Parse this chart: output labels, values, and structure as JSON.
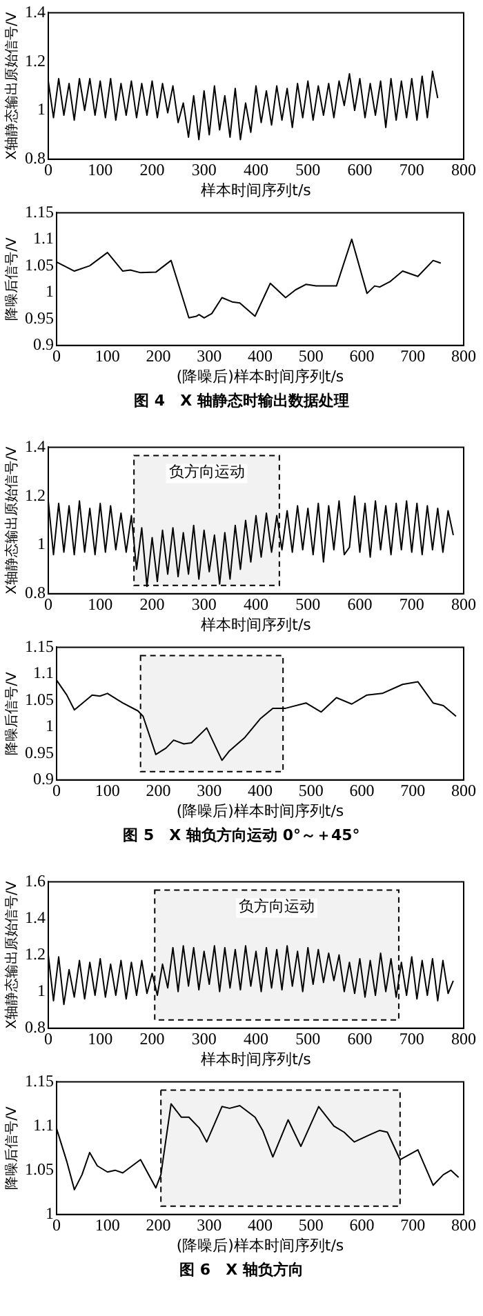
{
  "chart_data": [
    {
      "type": "line",
      "ylabel": "X轴静态输出原始信号/V",
      "xlabel": "样本时间序列t/s",
      "xlim": [
        0,
        800
      ],
      "xticks": [
        0,
        100,
        200,
        300,
        400,
        500,
        600,
        700,
        800
      ],
      "ylim": [
        0.8,
        1.4
      ],
      "yticks": [
        0.8,
        1,
        1.2,
        1.4
      ],
      "grid": false,
      "legend": false,
      "series": [
        {
          "color": "#000000",
          "x": [
            0,
            10,
            20,
            30,
            40,
            50,
            60,
            70,
            80,
            90,
            100,
            110,
            120,
            130,
            140,
            150,
            160,
            170,
            180,
            190,
            200,
            210,
            220,
            230,
            240,
            250,
            260,
            270,
            280,
            290,
            300,
            310,
            320,
            330,
            340,
            350,
            360,
            370,
            380,
            390,
            400,
            410,
            420,
            430,
            440,
            450,
            460,
            470,
            480,
            490,
            500,
            510,
            520,
            530,
            540,
            550,
            560,
            570,
            580,
            590,
            600,
            610,
            620,
            630,
            640,
            650,
            660,
            670,
            680,
            690,
            700,
            710,
            720,
            730,
            740,
            750
          ],
          "values": [
            1.12,
            0.97,
            1.13,
            0.98,
            1.11,
            0.96,
            1.13,
            1.0,
            1.13,
            0.98,
            1.12,
            0.97,
            1.13,
            0.96,
            1.11,
            0.98,
            1.12,
            0.97,
            1.11,
            0.98,
            1.12,
            0.97,
            1.11,
            0.99,
            1.1,
            0.95,
            1.03,
            0.89,
            1.06,
            0.88,
            1.08,
            0.9,
            1.1,
            0.92,
            1.06,
            0.89,
            1.09,
            0.88,
            1.03,
            0.91,
            1.1,
            0.95,
            1.08,
            0.94,
            1.1,
            0.96,
            1.09,
            0.93,
            1.11,
            0.97,
            1.12,
            0.96,
            1.1,
            0.98,
            1.11,
            0.97,
            1.12,
            1.02,
            1.15,
            1.0,
            1.13,
            0.97,
            1.11,
            0.98,
            1.12,
            0.93,
            1.13,
            0.96,
            1.12,
            0.97,
            1.13,
            0.96,
            1.14,
            0.97,
            1.16,
            1.05
          ]
        }
      ]
    },
    {
      "type": "line",
      "ylabel": "降噪后信号/V",
      "xlabel": "(降噪后)样本时间序列t/s",
      "xlim": [
        0,
        800
      ],
      "xticks": [
        0,
        100,
        200,
        300,
        400,
        500,
        600,
        700,
        800
      ],
      "ylim": [
        0.9,
        1.15
      ],
      "yticks": [
        0.9,
        0.95,
        1,
        1.05,
        1.1,
        1.15
      ],
      "grid": false,
      "legend": false,
      "series": [
        {
          "color": "#000000",
          "x": [
            0,
            35,
            65,
            100,
            130,
            145,
            165,
            195,
            225,
            260,
            275,
            280,
            290,
            305,
            325,
            345,
            360,
            390,
            420,
            450,
            470,
            490,
            510,
            550,
            580,
            610,
            625,
            635,
            655,
            680,
            710,
            740,
            755
          ],
          "values": [
            1.057,
            1.04,
            1.05,
            1.075,
            1.04,
            1.042,
            1.037,
            1.038,
            1.06,
            0.952,
            0.955,
            0.958,
            0.952,
            0.96,
            0.99,
            0.982,
            0.98,
            0.955,
            1.017,
            0.99,
            1.005,
            1.015,
            1.012,
            1.012,
            1.1,
            0.998,
            1.012,
            1.01,
            1.02,
            1.04,
            1.03,
            1.06,
            1.055
          ]
        }
      ],
      "annotations": [
        "图 4　X 轴静态时输出数据处理"
      ]
    },
    {
      "type": "line",
      "ylabel": "X轴静态输出原始信号/V",
      "xlabel": "样本时间序列t/s",
      "xlim": [
        0,
        800
      ],
      "xticks": [
        0,
        100,
        200,
        300,
        400,
        500,
        600,
        700,
        800
      ],
      "ylim": [
        0.8,
        1.4
      ],
      "yticks": [
        0.8,
        1,
        1.2,
        1.4
      ],
      "grid": false,
      "legend": false,
      "bands": [
        {
          "axis": "x",
          "from": 165,
          "to": 445,
          "label": "负方向运动",
          "color": "#f2f2f2"
        }
      ],
      "series": [
        {
          "color": "#000000",
          "x": [
            0,
            10,
            20,
            30,
            40,
            50,
            60,
            70,
            80,
            90,
            100,
            110,
            120,
            130,
            140,
            150,
            160,
            170,
            180,
            190,
            200,
            210,
            220,
            230,
            240,
            250,
            260,
            270,
            280,
            290,
            300,
            310,
            320,
            330,
            340,
            350,
            360,
            370,
            380,
            390,
            400,
            410,
            420,
            430,
            440,
            450,
            460,
            470,
            480,
            490,
            500,
            510,
            520,
            530,
            540,
            550,
            560,
            570,
            580,
            590,
            600,
            610,
            620,
            630,
            640,
            650,
            660,
            670,
            680,
            690,
            700,
            710,
            720,
            730,
            740,
            750,
            760,
            770,
            780
          ],
          "values": [
            1.18,
            0.96,
            1.17,
            0.97,
            1.16,
            0.96,
            1.18,
            0.97,
            1.15,
            0.96,
            1.17,
            0.97,
            1.16,
            0.98,
            1.13,
            0.97,
            1.12,
            0.9,
            1.07,
            0.83,
            1.03,
            0.85,
            1.06,
            0.88,
            1.07,
            0.87,
            1.05,
            0.88,
            1.08,
            0.86,
            1.06,
            0.89,
            1.04,
            0.84,
            1.05,
            0.86,
            1.08,
            0.9,
            1.1,
            0.93,
            1.12,
            0.95,
            1.13,
            0.97,
            1.12,
            0.98,
            1.14,
            0.97,
            1.16,
            0.98,
            1.15,
            0.96,
            1.17,
            0.93,
            1.16,
            0.98,
            1.18,
            0.96,
            0.99,
            1.2,
            0.97,
            1.17,
            0.95,
            1.18,
            0.98,
            1.16,
            0.96,
            1.17,
            0.98,
            1.18,
            0.97,
            1.17,
            0.96,
            1.16,
            0.98,
            1.15,
            0.97,
            1.14,
            1.04
          ]
        }
      ]
    },
    {
      "type": "line",
      "ylabel": "降噪后信号/V",
      "xlabel": "(降噪后)样本时间序列t/s",
      "xlim": [
        0,
        800
      ],
      "xticks": [
        0,
        100,
        200,
        300,
        400,
        500,
        600,
        700,
        800
      ],
      "ylim": [
        0.9,
        1.15
      ],
      "yticks": [
        0.9,
        0.95,
        1,
        1.05,
        1.1,
        1.15
      ],
      "grid": false,
      "legend": false,
      "bands": [
        {
          "axis": "x",
          "from": 165,
          "to": 445,
          "color": "#f2f2f2"
        }
      ],
      "series": [
        {
          "color": "#000000",
          "x": [
            0,
            20,
            35,
            55,
            70,
            85,
            100,
            130,
            160,
            170,
            195,
            215,
            230,
            250,
            265,
            295,
            325,
            340,
            370,
            400,
            425,
            450,
            490,
            520,
            550,
            580,
            610,
            640,
            680,
            710,
            740,
            760,
            785
          ],
          "values": [
            1.088,
            1.06,
            1.032,
            1.048,
            1.06,
            1.058,
            1.063,
            1.045,
            1.03,
            1.02,
            0.948,
            0.96,
            0.975,
            0.968,
            0.97,
            0.998,
            0.937,
            0.955,
            0.98,
            1.015,
            1.035,
            1.035,
            1.045,
            1.028,
            1.055,
            1.043,
            1.06,
            1.063,
            1.08,
            1.085,
            1.045,
            1.04,
            1.02
          ]
        }
      ],
      "annotations": [
        "图 5　X 轴负方向运动 0°～＋45°"
      ]
    },
    {
      "type": "line",
      "ylabel": "X轴静态输出原始信号/V",
      "xlabel": "样本时间序列t/s",
      "xlim": [
        0,
        800
      ],
      "xticks": [
        0,
        100,
        200,
        300,
        400,
        500,
        600,
        700,
        800
      ],
      "ylim": [
        0.8,
        1.6
      ],
      "yticks": [
        0.8,
        1,
        1.2,
        1.4,
        1.6
      ],
      "grid": false,
      "legend": false,
      "bands": [
        {
          "axis": "x",
          "from": 205,
          "to": 675,
          "label": "负方向运动",
          "color": "#f2f2f2"
        }
      ],
      "series": [
        {
          "color": "#000000",
          "x": [
            0,
            10,
            20,
            30,
            40,
            50,
            60,
            70,
            80,
            90,
            100,
            110,
            120,
            130,
            140,
            150,
            160,
            170,
            180,
            190,
            200,
            210,
            220,
            230,
            240,
            250,
            260,
            270,
            280,
            290,
            300,
            310,
            320,
            330,
            340,
            350,
            360,
            370,
            380,
            390,
            400,
            410,
            420,
            430,
            440,
            450,
            460,
            470,
            480,
            490,
            500,
            510,
            520,
            530,
            540,
            550,
            560,
            570,
            580,
            590,
            600,
            610,
            620,
            630,
            640,
            650,
            660,
            670,
            680,
            690,
            700,
            710,
            720,
            730,
            740,
            750,
            760,
            770,
            780
          ],
          "values": [
            1.2,
            0.95,
            1.19,
            0.93,
            1.12,
            0.97,
            1.17,
            0.96,
            1.16,
            0.98,
            1.18,
            0.97,
            1.15,
            0.98,
            1.17,
            0.96,
            1.16,
            0.98,
            1.17,
            0.99,
            1.1,
            0.98,
            1.15,
            1.02,
            1.24,
            1.0,
            1.25,
            1.03,
            1.24,
            1.01,
            1.22,
            1.04,
            1.25,
            1.0,
            1.24,
            1.02,
            1.23,
            1.01,
            1.25,
            1.03,
            1.22,
            1.0,
            1.24,
            1.02,
            1.23,
            1.01,
            1.25,
            1.03,
            1.22,
            1.0,
            1.24,
            1.04,
            1.23,
            1.05,
            1.21,
            1.06,
            1.2,
            1.0,
            1.16,
            0.99,
            1.18,
            0.97,
            1.17,
            0.98,
            1.21,
            1.0,
            1.18,
            0.97,
            1.16,
            0.98,
            1.19,
            0.96,
            1.17,
            0.98,
            1.18,
            0.95,
            1.17,
            0.99,
            1.06
          ]
        }
      ]
    },
    {
      "type": "line",
      "ylabel": "降噪后信号/V",
      "xlabel": "(降噪后)样本时间序列t/s",
      "xlim": [
        0,
        800
      ],
      "xticks": [
        0,
        100,
        200,
        300,
        400,
        500,
        600,
        700,
        800
      ],
      "ylim": [
        1,
        1.15
      ],
      "yticks": [
        1,
        1.05,
        1.1,
        1.15
      ],
      "grid": false,
      "legend": false,
      "bands": [
        {
          "axis": "x",
          "from": 205,
          "to": 675,
          "color": "#f2f2f2"
        }
      ],
      "series": [
        {
          "color": "#000000",
          "x": [
            0,
            20,
            35,
            50,
            65,
            80,
            100,
            115,
            130,
            165,
            195,
            205,
            225,
            245,
            260,
            280,
            295,
            325,
            340,
            360,
            390,
            405,
            425,
            455,
            480,
            515,
            545,
            565,
            585,
            615,
            635,
            650,
            675,
            710,
            740,
            760,
            775,
            790
          ],
          "values": [
            1.097,
            1.06,
            1.028,
            1.045,
            1.07,
            1.055,
            1.048,
            1.05,
            1.047,
            1.062,
            1.03,
            1.045,
            1.125,
            1.11,
            1.11,
            1.098,
            1.082,
            1.122,
            1.12,
            1.123,
            1.11,
            1.095,
            1.065,
            1.107,
            1.077,
            1.122,
            1.1,
            1.093,
            1.082,
            1.09,
            1.095,
            1.093,
            1.062,
            1.073,
            1.033,
            1.045,
            1.05,
            1.042
          ]
        }
      ],
      "annotations": [
        "图 6　X 轴负方向"
      ]
    }
  ]
}
